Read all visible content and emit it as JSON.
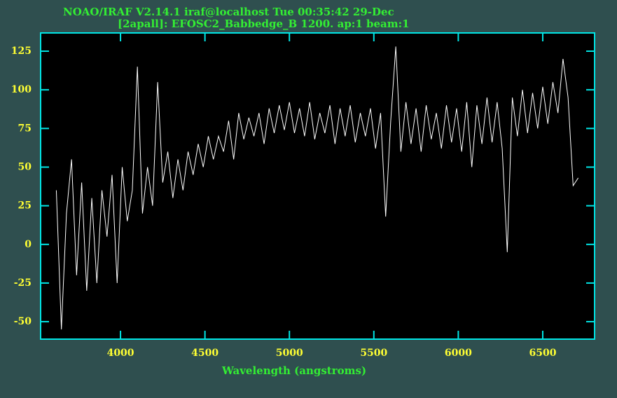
{
  "chart_data": {
    "type": "line",
    "title": "NOAO/IRAF V2.14.1 iraf@localhost Tue 00:35:42 29-Dec",
    "subtitle": "[2apall]: EFOSC2_Babbedge_B 1200. ap:1 beam:1",
    "x_label": "Wavelength (angstroms)",
    "xlim": [
      3527,
      6807
    ],
    "ylim": [
      -61.3,
      136.8
    ],
    "xticks": [
      4000,
      4500,
      5000,
      5500,
      6000,
      6500
    ],
    "yticks": [
      -50,
      -25,
      0,
      25,
      50,
      75,
      100,
      125
    ],
    "series": [
      {
        "color": "#ffffff",
        "x": [
          3620,
          3650,
          3680,
          3710,
          3740,
          3770,
          3800,
          3830,
          3860,
          3890,
          3920,
          3950,
          3980,
          4010,
          4040,
          4070,
          4100,
          4130,
          4160,
          4190,
          4220,
          4250,
          4280,
          4310,
          4340,
          4370,
          4400,
          4430,
          4460,
          4490,
          4520,
          4550,
          4580,
          4610,
          4640,
          4670,
          4700,
          4730,
          4760,
          4790,
          4820,
          4850,
          4880,
          4910,
          4940,
          4970,
          5000,
          5030,
          5060,
          5090,
          5120,
          5150,
          5180,
          5210,
          5240,
          5270,
          5300,
          5330,
          5360,
          5390,
          5420,
          5450,
          5480,
          5510,
          5540,
          5570,
          5600,
          5630,
          5660,
          5690,
          5720,
          5750,
          5780,
          5810,
          5840,
          5870,
          5900,
          5930,
          5960,
          5990,
          6020,
          6050,
          6080,
          6110,
          6140,
          6170,
          6200,
          6230,
          6260,
          6290,
          6320,
          6350,
          6380,
          6410,
          6440,
          6470,
          6500,
          6530,
          6560,
          6590,
          6620,
          6650,
          6680,
          6710
        ],
        "values": [
          35,
          -55,
          20,
          55,
          -20,
          40,
          -30,
          30,
          -25,
          35,
          5,
          45,
          -25,
          50,
          15,
          35,
          115,
          20,
          50,
          25,
          105,
          40,
          60,
          30,
          55,
          35,
          60,
          45,
          65,
          50,
          70,
          55,
          70,
          60,
          80,
          55,
          85,
          68,
          82,
          70,
          85,
          65,
          88,
          72,
          90,
          74,
          92,
          72,
          88,
          70,
          92,
          68,
          85,
          72,
          90,
          65,
          88,
          70,
          90,
          66,
          85,
          70,
          88,
          62,
          85,
          18,
          80,
          128,
          60,
          92,
          65,
          88,
          60,
          90,
          68,
          85,
          62,
          90,
          66,
          88,
          60,
          92,
          50,
          90,
          65,
          95,
          66,
          92,
          62,
          -5,
          95,
          70,
          100,
          72,
          98,
          75,
          102,
          78,
          105,
          85,
          120,
          95,
          38,
          43
        ]
      }
    ]
  }
}
